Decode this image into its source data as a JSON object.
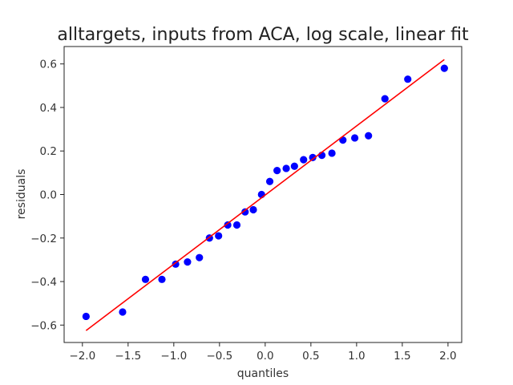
{
  "chart_data": {
    "type": "scatter",
    "title": "alltargets, inputs from ACA, log scale, linear fit",
    "xlabel": "quantiles",
    "ylabel": "residuals",
    "xlim": [
      -2.2,
      2.15
    ],
    "ylim": [
      -0.68,
      0.68
    ],
    "x_ticks": [
      -2.0,
      -1.5,
      -1.0,
      -0.5,
      0.0,
      0.5,
      1.0,
      1.5,
      2.0
    ],
    "x_tick_labels": [
      "−2.0",
      "−1.5",
      "−1.0",
      "−0.5",
      "0.0",
      "0.5",
      "1.0",
      "1.5",
      "2.0"
    ],
    "y_ticks": [
      -0.6,
      -0.4,
      -0.2,
      0.0,
      0.2,
      0.4,
      0.6
    ],
    "y_tick_labels": [
      "−0.6",
      "−0.4",
      "−0.2",
      "0.0",
      "0.2",
      "0.4",
      "0.6"
    ],
    "grid": false,
    "series": [
      {
        "type": "scatter",
        "color": "#0000ff",
        "x": [
          -1.96,
          -1.56,
          -1.31,
          -1.13,
          -0.98,
          -0.85,
          -0.72,
          -0.61,
          -0.51,
          -0.41,
          -0.31,
          -0.22,
          -0.13,
          -0.04,
          0.05,
          0.13,
          0.23,
          0.32,
          0.42,
          0.52,
          0.62,
          0.73,
          0.85,
          0.98,
          1.13,
          1.31,
          1.56,
          1.96
        ],
        "y": [
          -0.56,
          -0.54,
          -0.39,
          -0.39,
          -0.32,
          -0.31,
          -0.29,
          -0.2,
          -0.19,
          -0.14,
          -0.14,
          -0.08,
          -0.07,
          0.0,
          0.06,
          0.11,
          0.12,
          0.13,
          0.16,
          0.17,
          0.18,
          0.19,
          0.25,
          0.26,
          0.27,
          0.44,
          0.53,
          0.58
        ]
      },
      {
        "type": "line",
        "color": "#ff0000",
        "x": [
          -1.96,
          1.96
        ],
        "y": [
          -0.625,
          0.62
        ]
      }
    ]
  }
}
